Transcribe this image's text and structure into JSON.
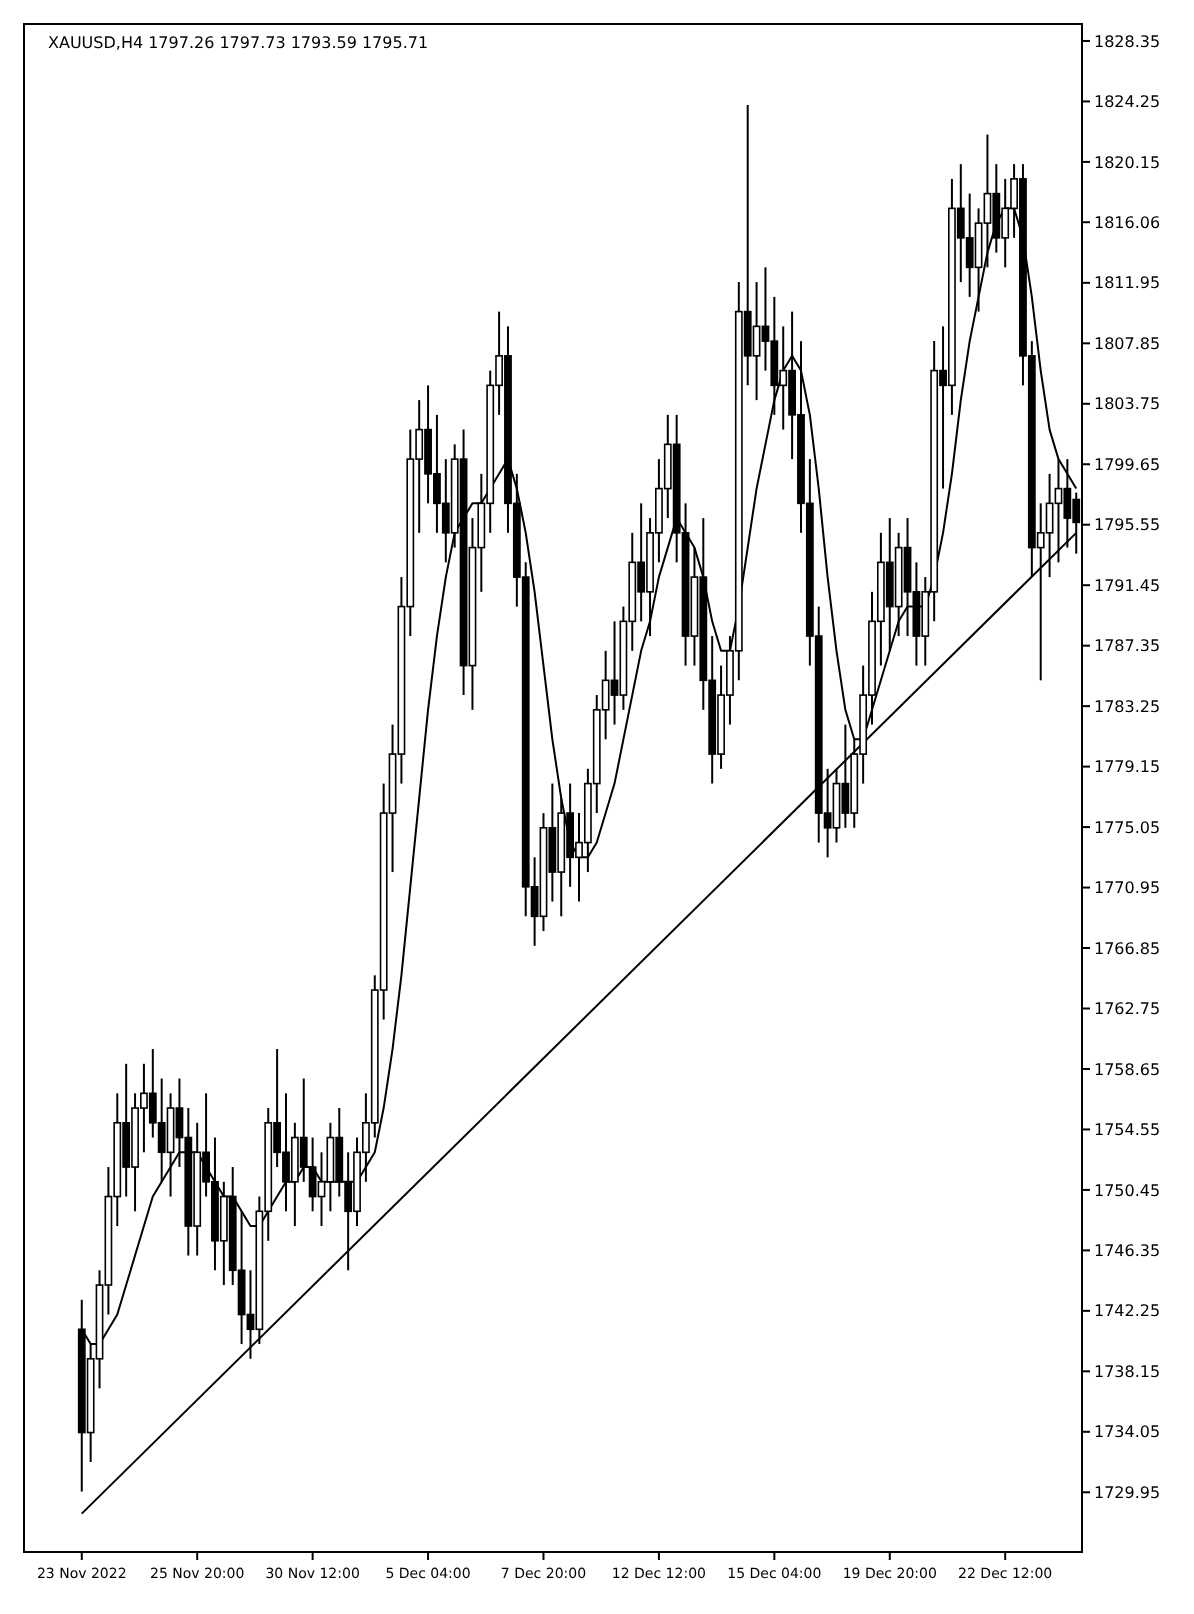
{
  "chart_data": {
    "type": "candlestick",
    "title": "XAUUSD,H4  1797.26 1797.73 1793.59 1795.71",
    "categories": [
      "23 Nov 2022",
      null,
      null,
      null,
      null,
      null,
      null,
      null,
      null,
      null,
      null,
      null,
      null,
      "25 Nov 20:00",
      null,
      null,
      null,
      null,
      null,
      null,
      null,
      null,
      null,
      null,
      null,
      null,
      "30 Nov 12:00",
      null,
      null,
      null,
      null,
      null,
      null,
      null,
      null,
      null,
      null,
      null,
      null,
      "5 Dec 04:00",
      null,
      null,
      null,
      null,
      null,
      null,
      null,
      null,
      null,
      null,
      null,
      null,
      "7 Dec 20:00",
      null,
      null,
      null,
      null,
      null,
      null,
      null,
      null,
      null,
      null,
      null,
      null,
      "12 Dec 12:00",
      null,
      null,
      null,
      null,
      null,
      null,
      null,
      null,
      null,
      null,
      null,
      null,
      "15 Dec 04:00",
      null,
      null,
      null,
      null,
      null,
      null,
      null,
      null,
      null,
      null,
      null,
      null,
      "19 Dec 20:00",
      null,
      null,
      null,
      null,
      null,
      null,
      null,
      null,
      null,
      null,
      null,
      null,
      "22 Dec 12:00",
      null,
      null,
      null,
      null,
      null,
      null,
      null,
      null
    ],
    "ohlc": [
      [
        1741,
        1743,
        1730,
        1734
      ],
      [
        1734,
        1740,
        1732,
        1739
      ],
      [
        1739,
        1745,
        1737,
        1744
      ],
      [
        1744,
        1752,
        1742,
        1750
      ],
      [
        1750,
        1757,
        1748,
        1755
      ],
      [
        1755,
        1759,
        1750,
        1752
      ],
      [
        1752,
        1757,
        1749,
        1756
      ],
      [
        1756,
        1759,
        1753,
        1757
      ],
      [
        1757,
        1760,
        1754,
        1755
      ],
      [
        1755,
        1758,
        1751,
        1753
      ],
      [
        1753,
        1757,
        1750,
        1756
      ],
      [
        1756,
        1758,
        1752,
        1754
      ],
      [
        1754,
        1756,
        1746,
        1748
      ],
      [
        1748,
        1755,
        1746,
        1753
      ],
      [
        1753,
        1757,
        1750,
        1751
      ],
      [
        1751,
        1754,
        1745,
        1747
      ],
      [
        1747,
        1751,
        1744,
        1750
      ],
      [
        1750,
        1752,
        1744,
        1745
      ],
      [
        1745,
        1749,
        1740,
        1742
      ],
      [
        1742,
        1745,
        1739,
        1741
      ],
      [
        1741,
        1750,
        1740,
        1749
      ],
      [
        1749,
        1756,
        1747,
        1755
      ],
      [
        1755,
        1760,
        1752,
        1753
      ],
      [
        1753,
        1757,
        1749,
        1751
      ],
      [
        1751,
        1755,
        1748,
        1754
      ],
      [
        1754,
        1758,
        1751,
        1752
      ],
      [
        1752,
        1754,
        1749,
        1750
      ],
      [
        1750,
        1753,
        1748,
        1751
      ],
      [
        1751,
        1755,
        1749,
        1754
      ],
      [
        1754,
        1756,
        1750,
        1751
      ],
      [
        1751,
        1753,
        1745,
        1749
      ],
      [
        1749,
        1754,
        1748,
        1753
      ],
      [
        1753,
        1757,
        1751,
        1755
      ],
      [
        1755,
        1765,
        1754,
        1764
      ],
      [
        1764,
        1778,
        1762,
        1776
      ],
      [
        1776,
        1782,
        1772,
        1780
      ],
      [
        1780,
        1792,
        1778,
        1790
      ],
      [
        1790,
        1802,
        1788,
        1800
      ],
      [
        1800,
        1804,
        1795,
        1802
      ],
      [
        1802,
        1805,
        1797,
        1799
      ],
      [
        1799,
        1803,
        1795,
        1797
      ],
      [
        1797,
        1800,
        1793,
        1795
      ],
      [
        1795,
        1801,
        1794,
        1800
      ],
      [
        1800,
        1802,
        1784,
        1786
      ],
      [
        1786,
        1796,
        1783,
        1794
      ],
      [
        1794,
        1799,
        1791,
        1797
      ],
      [
        1797,
        1806,
        1795,
        1805
      ],
      [
        1805,
        1810,
        1803,
        1807
      ],
      [
        1807,
        1809,
        1795,
        1797
      ],
      [
        1797,
        1799,
        1790,
        1792
      ],
      [
        1792,
        1793,
        1769,
        1771
      ],
      [
        1771,
        1773,
        1767,
        1769
      ],
      [
        1769,
        1776,
        1768,
        1775
      ],
      [
        1775,
        1778,
        1770,
        1772
      ],
      [
        1772,
        1777,
        1769,
        1776
      ],
      [
        1776,
        1778,
        1771,
        1773
      ],
      [
        1773,
        1776,
        1770,
        1774
      ],
      [
        1774,
        1779,
        1772,
        1778
      ],
      [
        1778,
        1784,
        1776,
        1783
      ],
      [
        1783,
        1787,
        1781,
        1785
      ],
      [
        1785,
        1789,
        1782,
        1784
      ],
      [
        1784,
        1790,
        1783,
        1789
      ],
      [
        1789,
        1795,
        1787,
        1793
      ],
      [
        1793,
        1797,
        1789,
        1791
      ],
      [
        1791,
        1796,
        1788,
        1795
      ],
      [
        1795,
        1800,
        1793,
        1798
      ],
      [
        1798,
        1803,
        1796,
        1801
      ],
      [
        1801,
        1803,
        1793,
        1795
      ],
      [
        1795,
        1797,
        1786,
        1788
      ],
      [
        1788,
        1794,
        1786,
        1792
      ],
      [
        1792,
        1796,
        1783,
        1785
      ],
      [
        1785,
        1788,
        1778,
        1780
      ],
      [
        1780,
        1786,
        1779,
        1784
      ],
      [
        1784,
        1788,
        1782,
        1787
      ],
      [
        1787,
        1812,
        1785,
        1810
      ],
      [
        1810,
        1824,
        1805,
        1807
      ],
      [
        1807,
        1812,
        1804,
        1809
      ],
      [
        1809,
        1813,
        1806,
        1808
      ],
      [
        1808,
        1811,
        1803,
        1805
      ],
      [
        1805,
        1809,
        1802,
        1806
      ],
      [
        1806,
        1810,
        1800,
        1803
      ],
      [
        1803,
        1808,
        1795,
        1797
      ],
      [
        1797,
        1800,
        1786,
        1788
      ],
      [
        1788,
        1790,
        1774,
        1776
      ],
      [
        1776,
        1779,
        1773,
        1775
      ],
      [
        1775,
        1779,
        1774,
        1778
      ],
      [
        1778,
        1782,
        1775,
        1776
      ],
      [
        1776,
        1781,
        1775,
        1780
      ],
      [
        1780,
        1786,
        1778,
        1784
      ],
      [
        1784,
        1791,
        1782,
        1789
      ],
      [
        1789,
        1795,
        1786,
        1793
      ],
      [
        1793,
        1796,
        1787,
        1790
      ],
      [
        1790,
        1795,
        1788,
        1794
      ],
      [
        1794,
        1796,
        1788,
        1791
      ],
      [
        1791,
        1793,
        1786,
        1788
      ],
      [
        1788,
        1792,
        1786,
        1791
      ],
      [
        1791,
        1808,
        1789,
        1806
      ],
      [
        1806,
        1809,
        1798,
        1805
      ],
      [
        1805,
        1819,
        1803,
        1817
      ],
      [
        1817,
        1820,
        1812,
        1815
      ],
      [
        1815,
        1818,
        1811,
        1813
      ],
      [
        1813,
        1817,
        1810,
        1816
      ],
      [
        1816,
        1822,
        1813,
        1818
      ],
      [
        1818,
        1820,
        1814,
        1815
      ],
      [
        1815,
        1819,
        1813,
        1817
      ],
      [
        1817,
        1820,
        1815,
        1819
      ],
      [
        1819,
        1820,
        1805,
        1807
      ],
      [
        1807,
        1808,
        1792,
        1794
      ],
      [
        1794,
        1797,
        1785,
        1795
      ],
      [
        1795,
        1799,
        1792,
        1797
      ],
      [
        1797,
        1800,
        1793,
        1798
      ],
      [
        1798,
        1800,
        1794,
        1796
      ],
      [
        1797.26,
        1797.73,
        1793.59,
        1795.71
      ]
    ],
    "series": [
      {
        "type": "line",
        "color": "#000000",
        "values": [
          1741,
          1740,
          1740,
          1741,
          1742,
          1744,
          1746,
          1748,
          1750,
          1751,
          1752,
          1753,
          1753,
          1753,
          1752,
          1751,
          1750,
          1750,
          1749,
          1748,
          1748,
          1749,
          1750,
          1751,
          1751,
          1752,
          1752,
          1751,
          1751,
          1751,
          1751,
          1751,
          1752,
          1753,
          1756,
          1760,
          1765,
          1771,
          1777,
          1783,
          1788,
          1792,
          1795,
          1796,
          1797,
          1797,
          1798,
          1799,
          1800,
          1798,
          1795,
          1791,
          1786,
          1781,
          1777,
          1774,
          1773,
          1773,
          1774,
          1776,
          1778,
          1781,
          1784,
          1787,
          1789,
          1792,
          1794,
          1796,
          1795,
          1794,
          1792,
          1789,
          1787,
          1787,
          1790,
          1794,
          1798,
          1801,
          1804,
          1806,
          1807,
          1806,
          1803,
          1798,
          1792,
          1787,
          1783,
          1781,
          1781,
          1783,
          1785,
          1787,
          1789,
          1790,
          1790,
          1790,
          1792,
          1795,
          1799,
          1804,
          1808,
          1811,
          1814,
          1816,
          1817,
          1817,
          1815,
          1811,
          1806,
          1802,
          1800,
          1799,
          1798
        ]
      },
      {
        "type": "line",
        "color": "#000000",
        "values": [
          1728.5,
          null,
          null,
          null,
          null,
          null,
          null,
          null,
          null,
          null,
          null,
          null,
          null,
          null,
          null,
          null,
          null,
          null,
          null,
          null,
          null,
          null,
          null,
          null,
          null,
          null,
          null,
          null,
          null,
          null,
          null,
          null,
          null,
          null,
          null,
          null,
          null,
          null,
          null,
          null,
          null,
          null,
          null,
          null,
          null,
          null,
          null,
          null,
          null,
          null,
          null,
          null,
          null,
          null,
          null,
          null,
          null,
          null,
          null,
          null,
          null,
          null,
          null,
          null,
          null,
          null,
          null,
          null,
          null,
          null,
          null,
          null,
          null,
          null,
          null,
          null,
          null,
          null,
          null,
          null,
          null,
          null,
          null,
          null,
          null,
          null,
          null,
          null,
          null,
          null,
          null,
          null,
          null,
          null,
          null,
          null,
          null,
          null,
          null,
          null,
          null,
          null,
          null,
          null,
          null,
          null,
          null,
          null,
          null,
          null,
          null,
          null,
          1795
        ]
      }
    ],
    "ylim": [
      1725.9,
      1829.5
    ],
    "yticks": [
      1828.35,
      1824.25,
      1820.15,
      1816.06,
      1811.95,
      1807.85,
      1803.75,
      1799.65,
      1795.55,
      1791.45,
      1787.35,
      1783.25,
      1779.15,
      1775.05,
      1770.95,
      1766.85,
      1762.75,
      1758.65,
      1754.55,
      1750.45,
      1746.35,
      1742.25,
      1738.15,
      1734.05,
      1729.95
    ]
  }
}
